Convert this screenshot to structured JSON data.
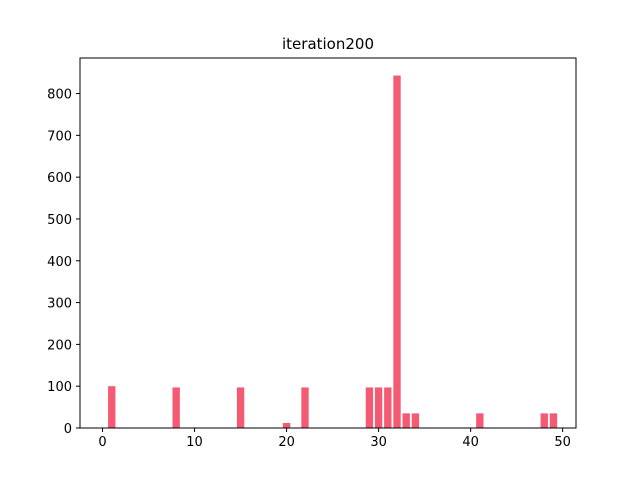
{
  "chart_data": {
    "type": "bar",
    "title": "iteration200",
    "xlabel": "",
    "ylabel": "",
    "xlim": [
      -2.45,
      51.45
    ],
    "ylim": [
      0,
      885
    ],
    "x_ticks": [
      0,
      10,
      20,
      30,
      40,
      50
    ],
    "y_ticks": [
      0,
      100,
      200,
      300,
      400,
      500,
      600,
      700,
      800
    ],
    "grid": false,
    "bar_color": "#f45a72",
    "x": [
      1,
      8,
      15,
      20,
      22,
      29,
      30,
      31,
      32,
      33,
      34,
      41,
      48,
      49
    ],
    "values": [
      100,
      97,
      97,
      12,
      97,
      97,
      97,
      97,
      843,
      35,
      35,
      35,
      35,
      35
    ]
  }
}
